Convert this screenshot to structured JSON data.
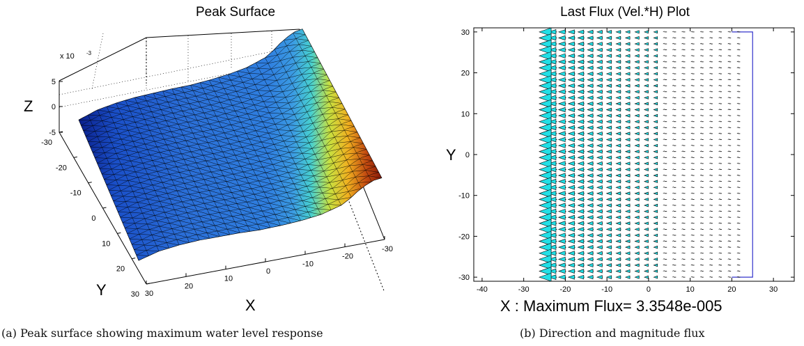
{
  "captions": {
    "a": "(a) Peak surface showing maximum water level response",
    "b": "(b) Direction and magnitude flux"
  },
  "chart_data": [
    {
      "type": "surface",
      "title": "Peak Surface",
      "xlabel": "X",
      "ylabel": "Y",
      "zlabel": "Z",
      "z_exponent_label": "x 10",
      "z_exponent_value": "-3",
      "xlim": [
        -30,
        30
      ],
      "ylim": [
        -30,
        30
      ],
      "zlim": [
        -5,
        5
      ],
      "x_ticks": [
        "30",
        "20",
        "10",
        "0",
        "-10",
        "-20",
        "-30"
      ],
      "y_ticks": [
        "-30",
        "-20",
        "-10",
        "0",
        "10",
        "20",
        "30"
      ],
      "z_ticks": [
        "5",
        "0",
        "-5"
      ],
      "grid": true,
      "mesh": "triangulated",
      "colormap": "jet",
      "surface_profile": {
        "x": [
          -30,
          -25,
          -20,
          -15,
          -10,
          -5,
          0,
          5,
          10,
          15,
          20,
          22,
          24,
          26,
          28,
          30
        ],
        "z_e3": [
          -2.8,
          -1.8,
          -1.3,
          -1.0,
          -0.9,
          -0.8,
          -0.8,
          -0.6,
          -0.3,
          0.2,
          1.2,
          2.0,
          3.0,
          3.8,
          4.4,
          4.6
        ]
      }
    },
    {
      "type": "quiver",
      "title": "Last Flux (Vel.*H) Plot",
      "xlabel": "X : Maximum Flux= 3.3548e-005",
      "ylabel": "Y",
      "xlim": [
        -42,
        35
      ],
      "ylim": [
        -31,
        31
      ],
      "x_ticks": [
        "-40",
        "-30",
        "-20",
        "-10",
        "0",
        "10",
        "20",
        "30"
      ],
      "y_ticks": [
        "30",
        "20",
        "10",
        "0",
        "-10",
        "-20",
        "-30"
      ],
      "domain_x": [
        -27,
        25
      ],
      "domain_y": [
        -30,
        30
      ],
      "direction": "negative x",
      "grid": false,
      "colors": {
        "arrow_fill": "#22dfe6",
        "arrow_edge": "#000000",
        "boundary": "#3333cc"
      }
    }
  ]
}
